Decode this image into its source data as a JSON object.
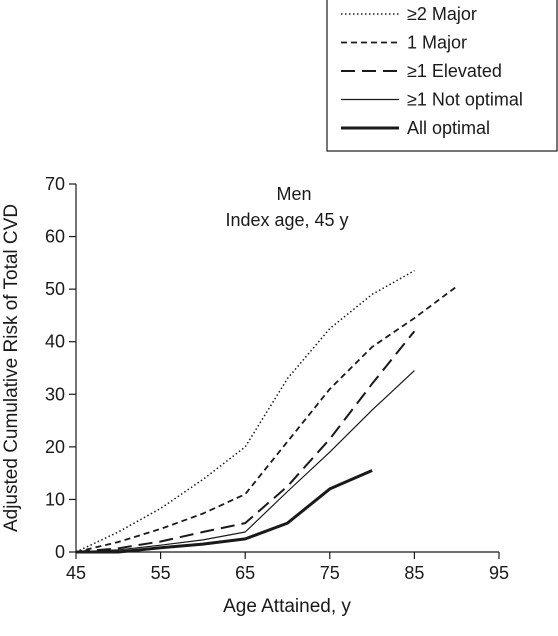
{
  "chart_data": {
    "type": "line",
    "title": "",
    "annotation": [
      "Men",
      "Index age, 45 y"
    ],
    "xlabel": "Age Attained, y",
    "ylabel": "Adjusted Cumulative Risk of Total CVD",
    "xlim": [
      45,
      95
    ],
    "ylim": [
      0,
      70
    ],
    "xticks": [
      45,
      55,
      65,
      75,
      85,
      95
    ],
    "yticks": [
      0,
      10,
      20,
      30,
      40,
      50,
      60,
      70
    ],
    "grid": false,
    "legend_position": "top-right",
    "series": [
      {
        "name": "≥2 Major",
        "style": "dotted",
        "x": [
          45,
          50,
          55,
          60,
          65,
          70,
          75,
          80,
          85
        ],
        "y": [
          0,
          3.8,
          8.3,
          13.8,
          20,
          33,
          42.5,
          49,
          53.5
        ]
      },
      {
        "name": "1 Major",
        "style": "short-dash",
        "x": [
          45,
          50,
          55,
          60,
          65,
          70,
          75,
          80,
          85,
          90
        ],
        "y": [
          0,
          1.9,
          4.4,
          7.3,
          11,
          21,
          31,
          39,
          44.5,
          50.5
        ]
      },
      {
        "name": "≥1 Elevated",
        "style": "long-dash",
        "x": [
          45,
          50,
          55,
          60,
          65,
          70,
          75,
          80,
          85
        ],
        "y": [
          0,
          0.7,
          2,
          3.8,
          5.5,
          12.5,
          21.5,
          32,
          42
        ]
      },
      {
        "name": "≥1 Not optimal",
        "style": "thin-solid",
        "x": [
          45,
          50,
          55,
          60,
          65,
          70,
          75,
          80,
          85
        ],
        "y": [
          0,
          0.4,
          1.3,
          2.3,
          3.8,
          11.5,
          19,
          27,
          34.5
        ]
      },
      {
        "name": "All optimal",
        "style": "thick-solid",
        "x": [
          45,
          50,
          55,
          60,
          65,
          70,
          75,
          80
        ],
        "y": [
          0,
          0,
          0.8,
          1.5,
          2.5,
          5.5,
          12,
          15.5
        ]
      }
    ]
  }
}
